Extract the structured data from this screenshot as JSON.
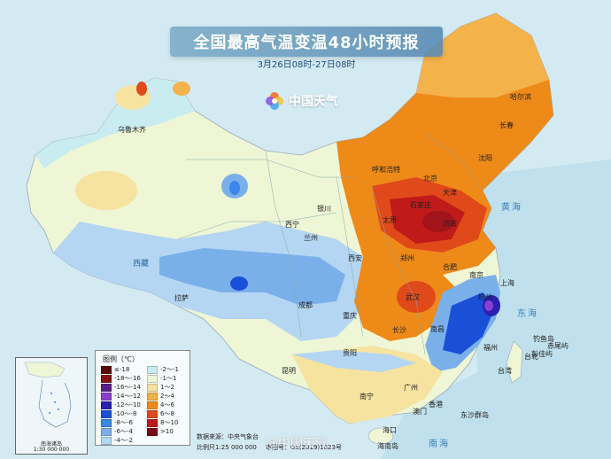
{
  "header": {
    "title": "全国最高气温变温48小时预报",
    "subtitle": "3月26日08时-27日08时",
    "brand_name": "中国天气"
  },
  "legend": {
    "title": "图例（℃）",
    "items": [
      {
        "label": "≤-18",
        "color": "#5a0a0a"
      },
      {
        "label": "-18～-16",
        "color": "#8a1010"
      },
      {
        "label": "-16～-14",
        "color": "#5a1f8a"
      },
      {
        "label": "-14～-12",
        "color": "#8a3fd0"
      },
      {
        "label": "-12～-10",
        "color": "#2a1fb0"
      },
      {
        "label": "-10～-8",
        "color": "#1a50d8"
      },
      {
        "label": "-8～-6",
        "color": "#3a86ea"
      },
      {
        "label": "-6～-4",
        "color": "#7ab0ea"
      },
      {
        "label": "-4～-2",
        "color": "#b4d6f2"
      },
      {
        "label": "-2～-1",
        "color": "#c8ecef"
      },
      {
        "label": "-1～1",
        "color": "#eef6d6"
      },
      {
        "label": "1～2",
        "color": "#f6e3a0"
      },
      {
        "label": "2～4",
        "color": "#f4b24a"
      },
      {
        "label": "4～6",
        "color": "#ee8a18"
      },
      {
        "label": "6～8",
        "color": "#e04a1a"
      },
      {
        "label": "8～10",
        "color": "#c01a1a"
      },
      {
        "label": ">10",
        "color": "#7a0a1a"
      }
    ]
  },
  "inset": {
    "label1": "南海诸岛",
    "label2": "1:30 000 000"
  },
  "footer": {
    "source": "数据来源：中央气象台",
    "scale": "比例尺1:25 000 000",
    "approval": "审图号：GS(2019)1823号"
  },
  "watermark": "@中国天气",
  "cities": [
    {
      "name": "乌鲁木齐"
    },
    {
      "name": "哈尔滨"
    },
    {
      "name": "长春"
    },
    {
      "name": "沈阳"
    },
    {
      "name": "呼和浩特"
    },
    {
      "name": "北京"
    },
    {
      "name": "天津"
    },
    {
      "name": "石家庄"
    },
    {
      "name": "太原"
    },
    {
      "name": "济南"
    },
    {
      "name": "银川"
    },
    {
      "name": "西宁"
    },
    {
      "name": "兰州"
    },
    {
      "name": "西安"
    },
    {
      "name": "郑州"
    },
    {
      "name": "合肥"
    },
    {
      "name": "南京"
    },
    {
      "name": "上海"
    },
    {
      "name": "杭州"
    },
    {
      "name": "武汉"
    },
    {
      "name": "成都"
    },
    {
      "name": "重庆"
    },
    {
      "name": "长沙"
    },
    {
      "name": "南昌"
    },
    {
      "name": "福州"
    },
    {
      "name": "台北"
    },
    {
      "name": "贵阳"
    },
    {
      "name": "昆明"
    },
    {
      "name": "南宁"
    },
    {
      "name": "广州"
    },
    {
      "name": "香港"
    },
    {
      "name": "澳门"
    },
    {
      "name": "海口"
    },
    {
      "name": "拉萨"
    },
    {
      "name": "台湾"
    }
  ],
  "islands": [
    {
      "name": "钓鱼岛"
    },
    {
      "name": "赤尾屿"
    },
    {
      "name": "彭佳屿"
    },
    {
      "name": "东沙群岛"
    },
    {
      "name": "海南岛"
    }
  ],
  "seas": [
    "黄海",
    "东海",
    "南海"
  ],
  "provinces": [
    "西藏"
  ]
}
